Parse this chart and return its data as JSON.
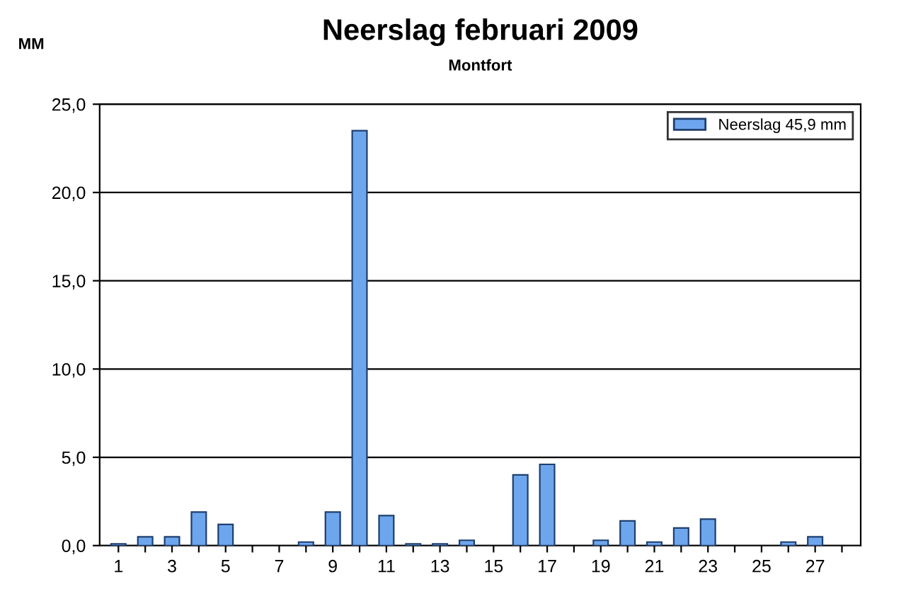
{
  "chart_data": {
    "type": "bar",
    "title": "Neerslag februari 2009",
    "subtitle": "Montfort",
    "ylabel": "MM",
    "categories": [
      "1",
      null,
      "3",
      null,
      "5",
      null,
      "7",
      null,
      "9",
      null,
      "11",
      null,
      "13",
      null,
      "15",
      null,
      "17",
      null,
      "19",
      null,
      "21",
      null,
      "23",
      null,
      "25",
      null,
      "27",
      null
    ],
    "series": [
      {
        "name": "Neerslag 45,9 mm",
        "color": "#6ea6ee",
        "values": [
          0.1,
          0.5,
          0.5,
          1.9,
          1.2,
          null,
          null,
          0.2,
          1.9,
          23.5,
          1.7,
          0.1,
          0.1,
          0.3,
          null,
          4.0,
          4.6,
          null,
          0.3,
          1.4,
          0.2,
          1.0,
          1.5,
          null,
          null,
          0.2,
          0.5,
          null
        ]
      }
    ],
    "ylim": [
      0,
      25
    ],
    "yticks": [
      {
        "value": 0,
        "label": "0,0"
      },
      {
        "value": 5,
        "label": "5,0"
      },
      {
        "value": 10,
        "label": "10,0"
      },
      {
        "value": 15,
        "label": "15,0"
      },
      {
        "value": 20,
        "label": "20,0"
      },
      {
        "value": 25,
        "label": "25,0"
      }
    ],
    "grid": "y",
    "legend": "top right"
  }
}
